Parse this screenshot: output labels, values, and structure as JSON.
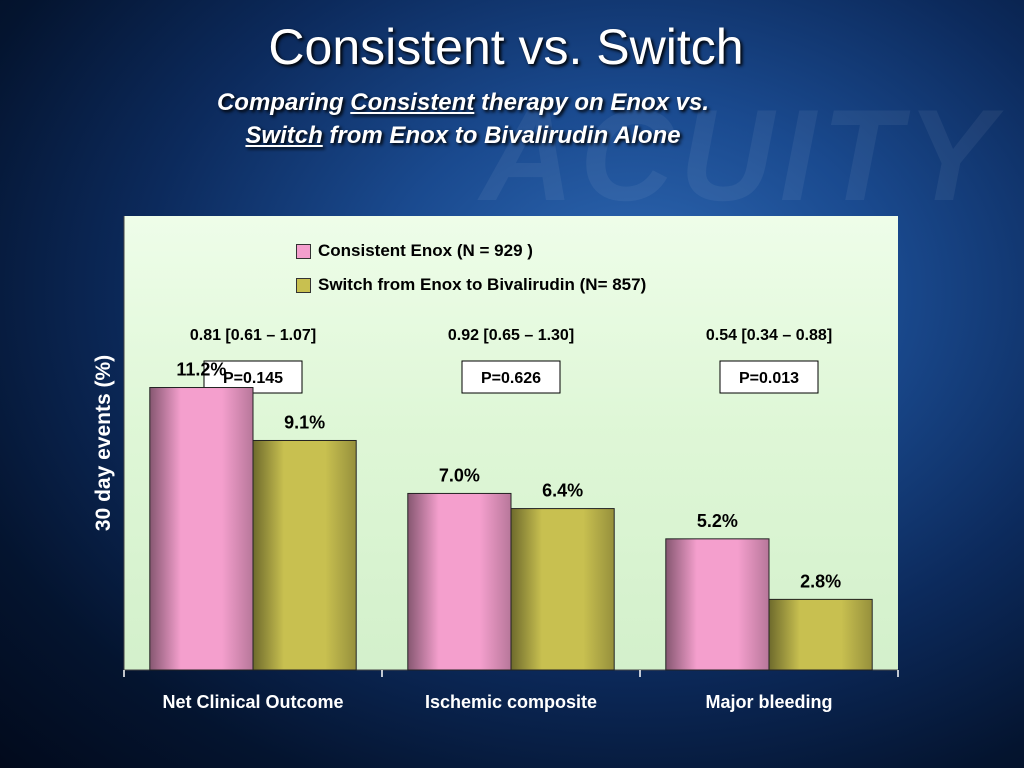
{
  "slide": {
    "title": "Consistent vs. Switch",
    "subtitle": {
      "line1_pre": "Comparing ",
      "line1_u": "Consistent",
      "line1_post": " therapy on Enox vs.",
      "line2_u": "Switch",
      "line2_post": " from Enox to Bivalirudin Alone"
    }
  },
  "chart_data": {
    "type": "bar",
    "ylabel": "30 day events (%)",
    "ylim": [
      0,
      18
    ],
    "categories": [
      "Net Clinical Outcome",
      "Ischemic composite",
      "Major bleeding"
    ],
    "series": [
      {
        "name": "Consistent Enox (N = 929 )",
        "values": [
          11.2,
          7.0,
          5.2
        ],
        "labels": [
          "11.2%",
          "7.0%",
          "5.2%"
        ],
        "color": "#f49fcd"
      },
      {
        "name": "Switch from Enox to Bivalirudin (N= 857)",
        "values": [
          9.1,
          6.4,
          2.8
        ],
        "labels": [
          "9.1%",
          "6.4%",
          "2.8%"
        ],
        "color": "#c8c050"
      }
    ],
    "annotations": {
      "ci": [
        "0.81 [0.61 – 1.07]",
        "0.92 [0.65 – 1.30]",
        "0.54 [0.34 – 0.88]"
      ],
      "p_values": [
        "P=0.145",
        "P=0.626",
        "P=0.013"
      ]
    },
    "grid": false,
    "legend_position": "top-center"
  }
}
